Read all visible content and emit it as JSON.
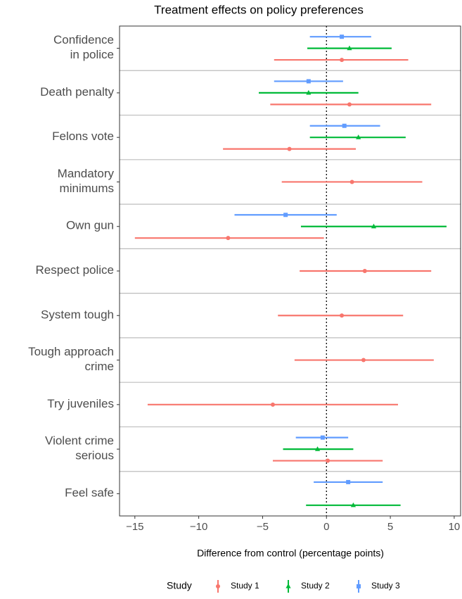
{
  "chart_data": {
    "type": "coefplot",
    "title": "Treatment effects on policy preferences",
    "x_label": "Difference from control (percentage points)",
    "categories": [
      "Confidence\nin police",
      "Death penalty",
      "Felons vote",
      "Mandatory\nminimums",
      "Own gun",
      "Respect police",
      "System tough",
      "Tough approach\ncrime",
      "Try juveniles",
      "Violent crime\nserious",
      "Feel safe"
    ],
    "xlim": [
      -16.2,
      10.5
    ],
    "xticks": [
      {
        "value": -15,
        "label": "−15"
      },
      {
        "value": -10,
        "label": "−10"
      },
      {
        "value": -5,
        "label": "−5"
      },
      0,
      5,
      10
    ],
    "reference_line": 0,
    "legend_title": "Study",
    "legend_position": "bottom",
    "series": [
      {
        "name": "Study 1",
        "color": "#F8766D",
        "shape": "circle",
        "values": [
          1.2,
          1.8,
          -2.9,
          2.0,
          -7.7,
          3.0,
          1.2,
          2.9,
          -4.2,
          0.1,
          null
        ],
        "lower": [
          -4.1,
          -4.4,
          -8.1,
          -3.5,
          -15.0,
          -2.1,
          -3.8,
          -2.5,
          -14.0,
          -4.2,
          null
        ],
        "upper": [
          6.4,
          8.2,
          2.3,
          7.5,
          -0.2,
          8.2,
          6.0,
          8.4,
          5.6,
          4.4,
          null
        ]
      },
      {
        "name": "Study 2",
        "color": "#00BA38",
        "shape": "triangle",
        "values": [
          1.8,
          -1.4,
          2.5,
          null,
          3.7,
          null,
          null,
          null,
          null,
          -0.7,
          2.1
        ],
        "lower": [
          -1.5,
          -5.3,
          -1.3,
          null,
          -2.0,
          null,
          null,
          null,
          null,
          -3.4,
          -1.6
        ],
        "upper": [
          5.1,
          2.5,
          6.2,
          null,
          9.4,
          null,
          null,
          null,
          null,
          2.1,
          5.8
        ]
      },
      {
        "name": "Study 3",
        "color": "#619CFF",
        "shape": "square",
        "values": [
          1.2,
          -1.4,
          1.4,
          null,
          -3.2,
          null,
          null,
          null,
          null,
          -0.3,
          1.7
        ],
        "lower": [
          -1.3,
          -4.1,
          -1.3,
          null,
          -7.2,
          null,
          null,
          null,
          null,
          -2.4,
          -1.0
        ],
        "upper": [
          3.5,
          1.3,
          4.2,
          null,
          0.8,
          null,
          null,
          null,
          null,
          1.7,
          4.4
        ]
      }
    ]
  }
}
